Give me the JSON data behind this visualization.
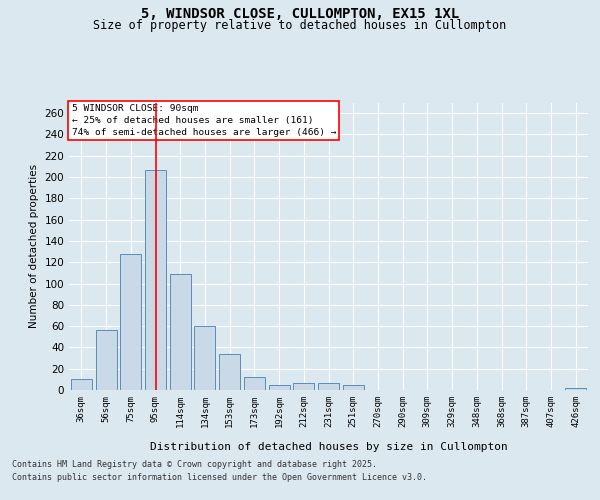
{
  "title_line1": "5, WINDSOR CLOSE, CULLOMPTON, EX15 1XL",
  "title_line2": "Size of property relative to detached houses in Cullompton",
  "xlabel": "Distribution of detached houses by size in Cullompton",
  "ylabel": "Number of detached properties",
  "categories": [
    "36sqm",
    "56sqm",
    "75sqm",
    "95sqm",
    "114sqm",
    "134sqm",
    "153sqm",
    "173sqm",
    "192sqm",
    "212sqm",
    "231sqm",
    "251sqm",
    "270sqm",
    "290sqm",
    "309sqm",
    "329sqm",
    "348sqm",
    "368sqm",
    "387sqm",
    "407sqm",
    "426sqm"
  ],
  "values": [
    10,
    56,
    128,
    207,
    109,
    60,
    34,
    12,
    5,
    7,
    7,
    5,
    0,
    0,
    0,
    0,
    0,
    0,
    0,
    0,
    2
  ],
  "bar_color": "#c9d9e8",
  "bar_edge_color": "#5b8db8",
  "vline_x": 3.0,
  "vline_color": "red",
  "annotation_text": "5 WINDSOR CLOSE: 90sqm\n← 25% of detached houses are smaller (161)\n74% of semi-detached houses are larger (466) →",
  "annotation_box_color": "white",
  "annotation_box_edge": "red",
  "ylim": [
    0,
    270
  ],
  "yticks": [
    0,
    20,
    40,
    60,
    80,
    100,
    120,
    140,
    160,
    180,
    200,
    220,
    240,
    260
  ],
  "footer_line1": "Contains HM Land Registry data © Crown copyright and database right 2025.",
  "footer_line2": "Contains public sector information licensed under the Open Government Licence v3.0.",
  "bg_color": "#dce8f0",
  "plot_bg_color": "#dce8f0"
}
